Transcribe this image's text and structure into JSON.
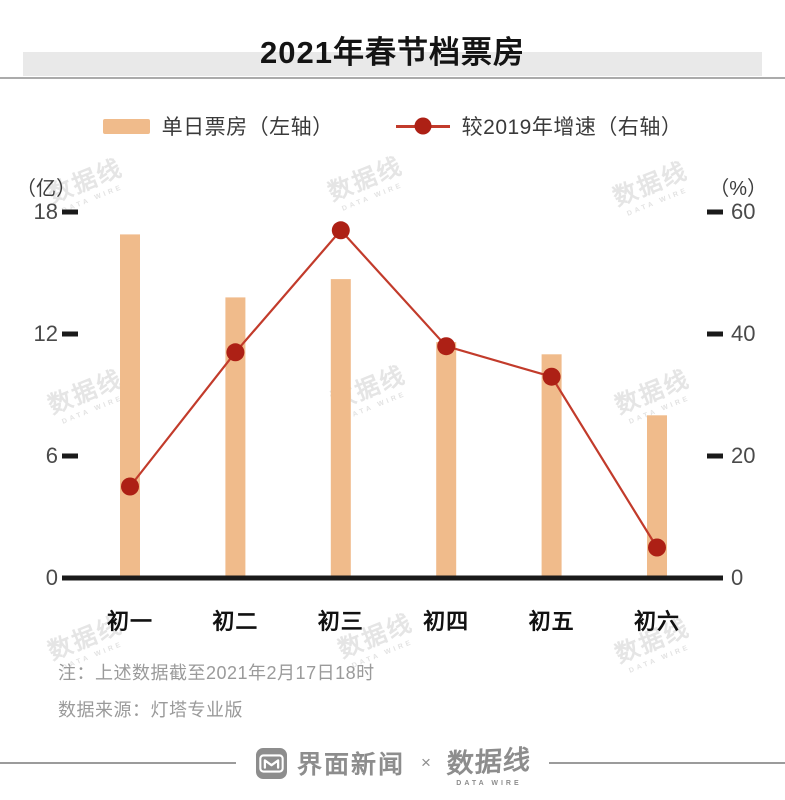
{
  "title": "2021年春节档票房",
  "legend": [
    {
      "label": "单日票房（左轴）",
      "type": "bar"
    },
    {
      "label": "较2019年增速（右轴）",
      "type": "line"
    }
  ],
  "left_axis": {
    "unit": "（亿）",
    "ticks": [
      18,
      12,
      6,
      0
    ]
  },
  "right_axis": {
    "unit": "（%）",
    "ticks": [
      60,
      40,
      20,
      0
    ]
  },
  "chart_data": {
    "type": "bar",
    "categories": [
      "初一",
      "初二",
      "初三",
      "初四",
      "初五",
      "初六"
    ],
    "series": [
      {
        "name": "单日票房（左轴）",
        "type": "bar",
        "axis": "left",
        "values": [
          16.9,
          13.8,
          14.7,
          11.6,
          11.0,
          8.0
        ]
      },
      {
        "name": "较2019年增速（右轴）",
        "type": "line",
        "axis": "right",
        "values": [
          15,
          37,
          57,
          38,
          33,
          5
        ]
      }
    ],
    "title": "2021年春节档票房",
    "xlabel": "",
    "ylabel_left": "亿",
    "ylabel_right": "%",
    "left_ylim": [
      0,
      18
    ],
    "right_ylim": [
      0,
      60
    ],
    "grid": false,
    "legend_position": "top"
  },
  "notes": [
    "注：上述数据截至2021年2月17日18时",
    "数据来源：灯塔专业版"
  ],
  "footer": {
    "brand1": "界面新闻",
    "separator": "×",
    "brand2": "数据线",
    "brand2_sub": "DATA WIRE"
  },
  "watermark": {
    "text": "数据线",
    "subtext": "DATA WIRE"
  },
  "colors": {
    "bar": "#F0BB8B",
    "line": "#C23B2B",
    "dot": "#AD2015",
    "axis": "#1A1A1A",
    "tick_label": "#4A4A4A",
    "title_band": "#E9E9E9",
    "note": "#9A9A9A",
    "footer": "#8D8D8D"
  }
}
